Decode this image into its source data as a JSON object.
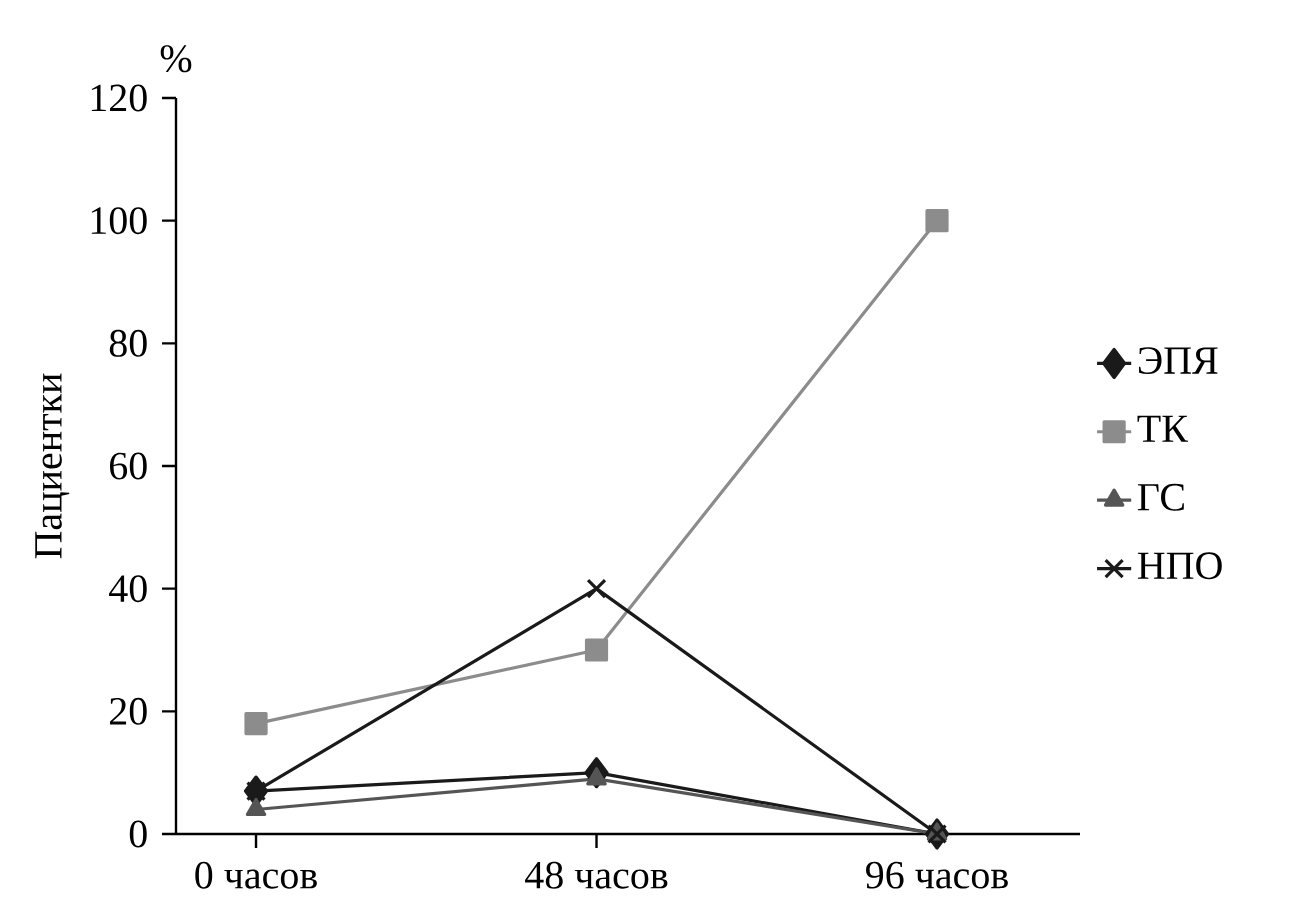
{
  "chart_data": {
    "type": "line",
    "ylabel": "Пациентки",
    "annotations": [
      "%"
    ],
    "categories": [
      "0 часов",
      "48 часов",
      "96 часов"
    ],
    "ylim": [
      0,
      120
    ],
    "yticks": [
      0,
      20,
      40,
      60,
      80,
      100,
      120
    ],
    "grid": false,
    "legend": "right",
    "series": [
      {
        "name": "ЭПЯ",
        "color": "#1a1a1a",
        "marker": "diamond",
        "values": [
          7,
          10,
          0
        ]
      },
      {
        "name": "ТК",
        "color": "#8c8c8c",
        "marker": "square",
        "values": [
          18,
          30,
          100
        ]
      },
      {
        "name": "ГС",
        "color": "#555555",
        "marker": "triangle",
        "values": [
          4,
          9,
          0
        ]
      },
      {
        "name": "НПО",
        "color": "#1a1a1a",
        "marker": "cross",
        "values": [
          7,
          40,
          0
        ]
      }
    ]
  }
}
